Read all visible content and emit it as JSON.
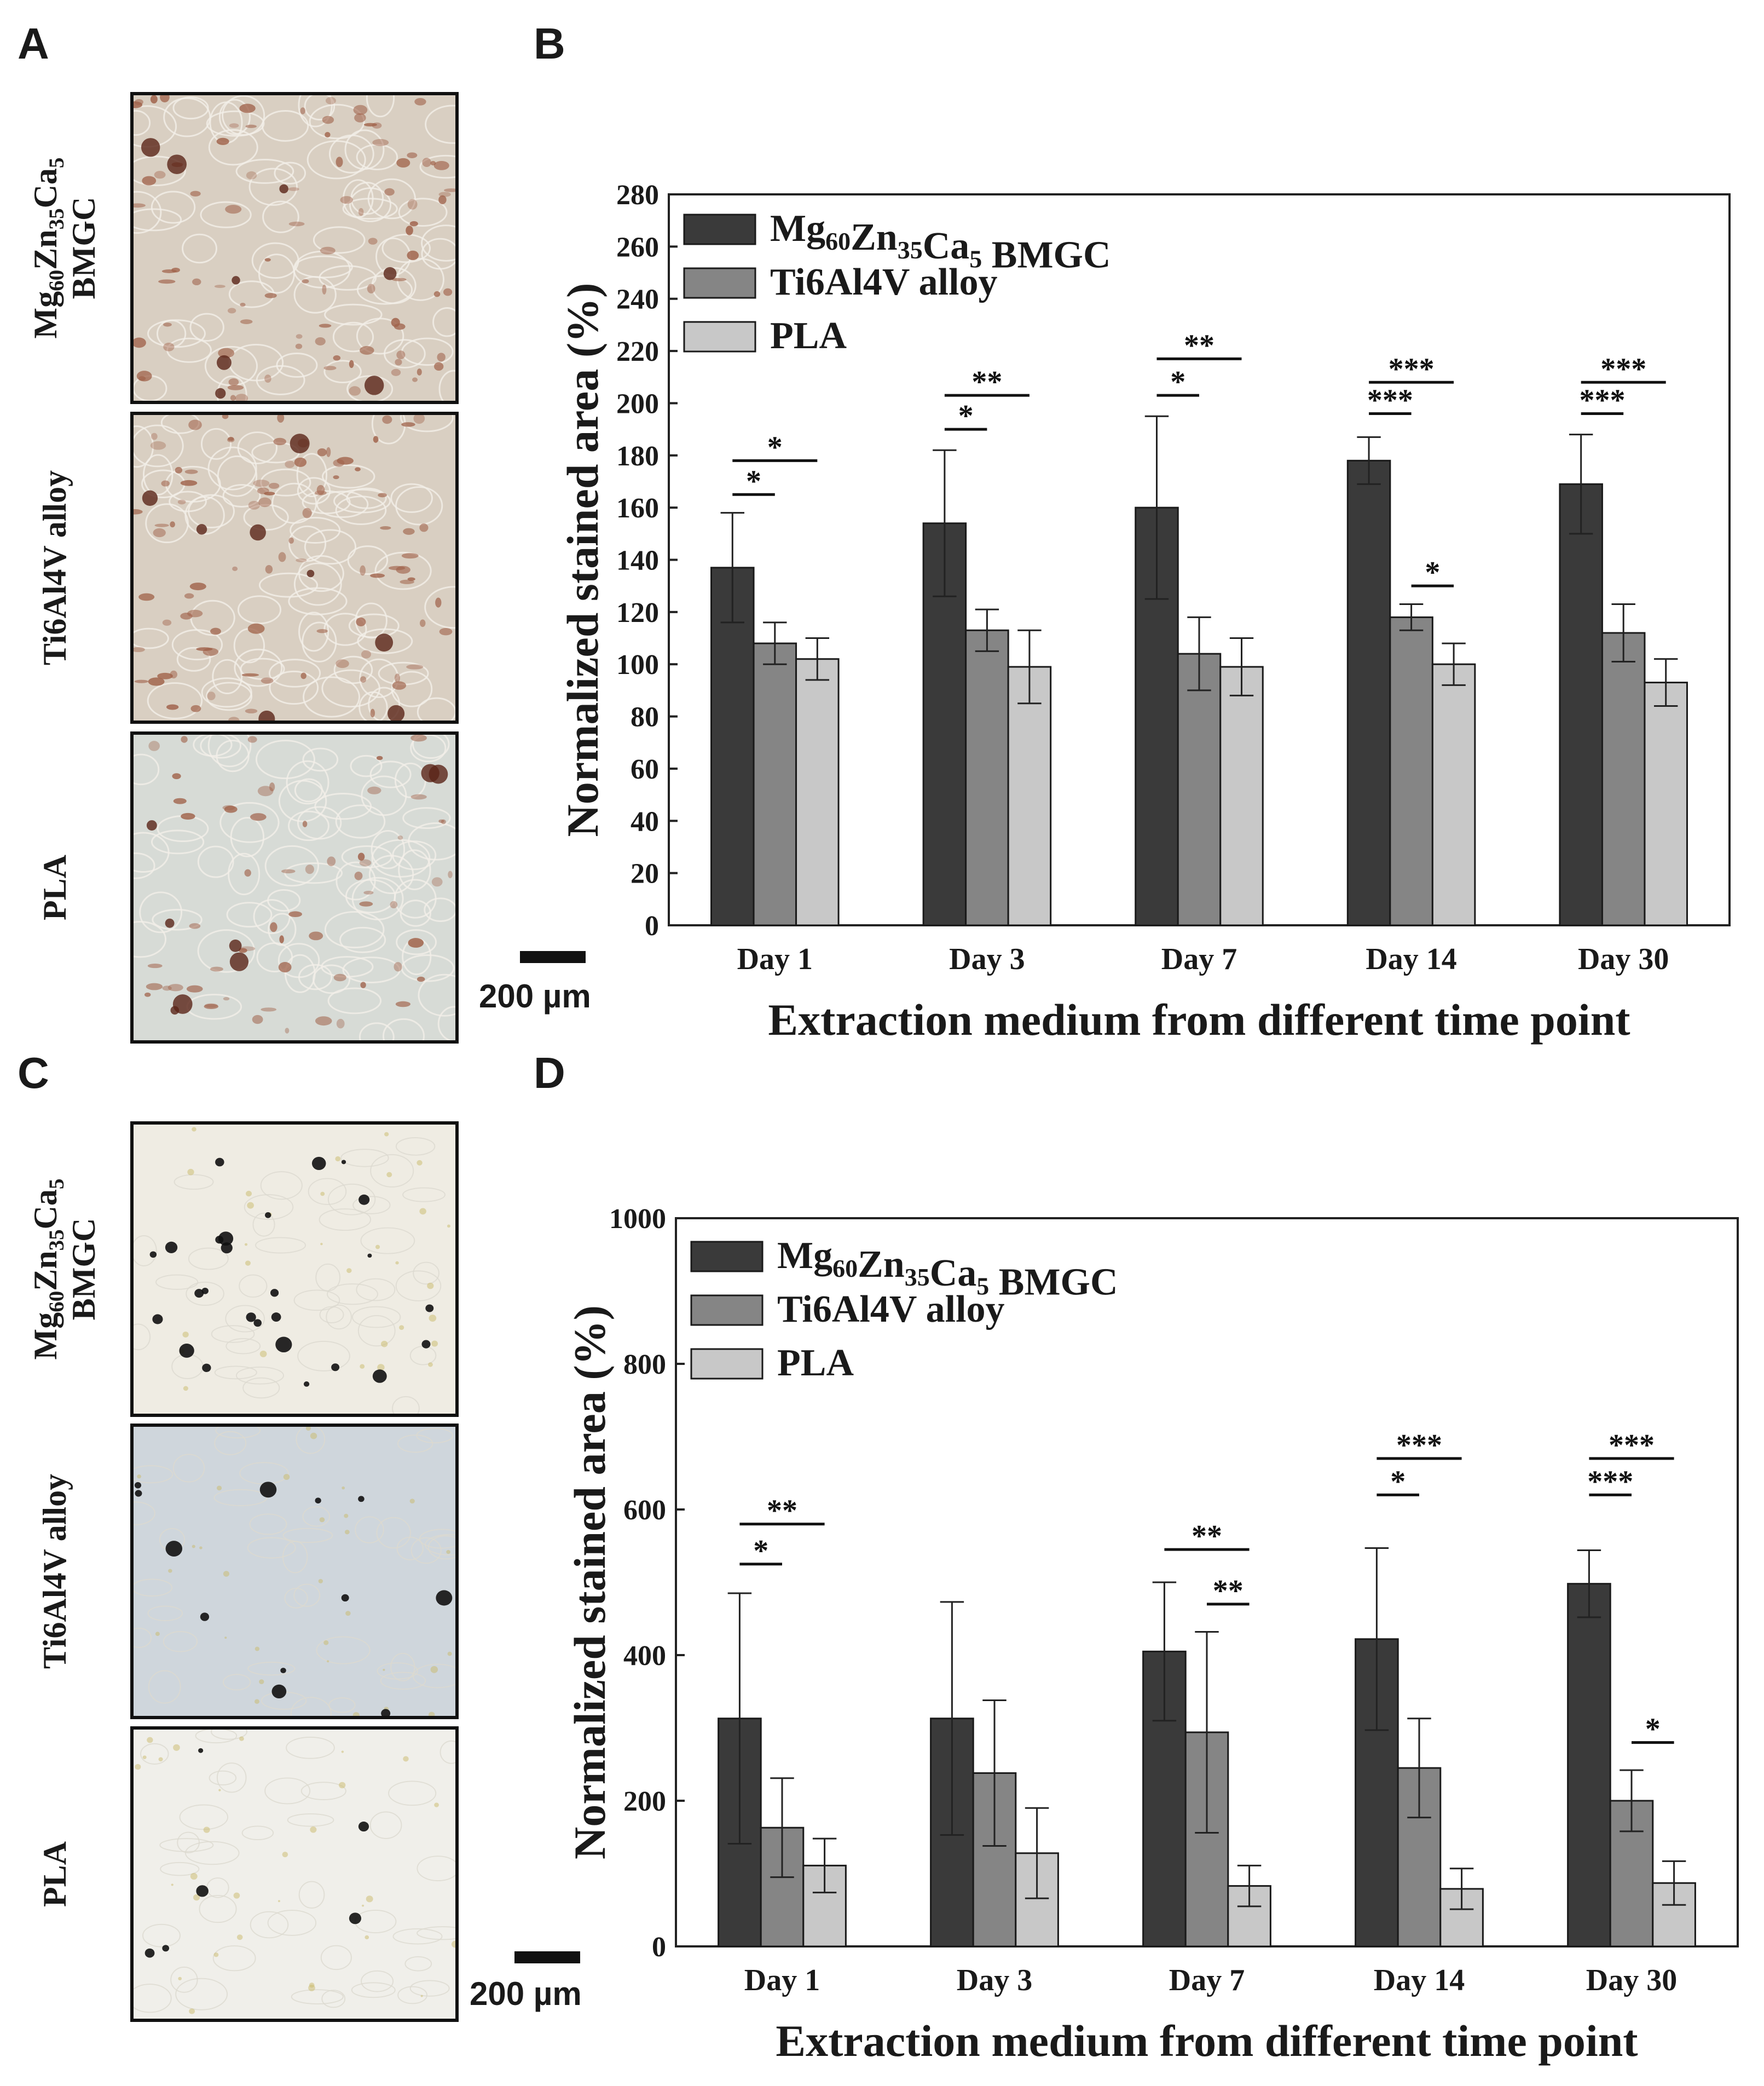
{
  "figure": {
    "panel_labels": {
      "a": "A",
      "b": "B",
      "c": "C",
      "d": "D"
    },
    "micrograph_rows": [
      {
        "label_line1": "Mg60Zn35Ca5",
        "label_line2": "BMGC"
      },
      {
        "label_line1": "Ti6Al4V alloy",
        "label_line2": ""
      },
      {
        "label_line1": "PLA",
        "label_line2": ""
      }
    ],
    "scale_bar_label": "200 µm",
    "stain_colors": {
      "alp_cells": "#a0624a",
      "alp_dark": "#5a2418",
      "mineral_nodule": "#111111"
    }
  },
  "chart_data": [
    {
      "type": "bar",
      "panel": "B",
      "title": "",
      "xlabel": "Extraction medium from different time point",
      "ylabel": "Normalized stained area (%)",
      "ylim": [
        0,
        280
      ],
      "yticks": [
        0,
        20,
        40,
        60,
        80,
        100,
        120,
        140,
        160,
        180,
        200,
        220,
        240,
        260,
        280
      ],
      "legend_position": "top-left",
      "categories": [
        "Day 1",
        "Day 3",
        "Day 7",
        "Day 14",
        "Day 30"
      ],
      "series": [
        {
          "name": "Mg60Zn35Ca5 BMGC",
          "color": "#3a3a3a",
          "values": [
            137,
            154,
            160,
            178,
            169
          ],
          "errors": [
            21,
            28,
            35,
            9,
            19
          ]
        },
        {
          "name": "Ti6Al4V alloy",
          "color": "#858585",
          "values": [
            108,
            113,
            104,
            118,
            112
          ],
          "errors": [
            8,
            8,
            14,
            5,
            11
          ]
        },
        {
          "name": "PLA",
          "color": "#c8c8c8",
          "values": [
            102,
            99,
            99,
            100,
            93
          ],
          "errors": [
            8,
            14,
            11,
            8,
            9
          ]
        }
      ],
      "significance": [
        {
          "category": 0,
          "from": 0,
          "to": 1,
          "y": 165,
          "label": "*"
        },
        {
          "category": 0,
          "from": 0,
          "to": 2,
          "y": 178,
          "label": "*"
        },
        {
          "category": 1,
          "from": 0,
          "to": 1,
          "y": 190,
          "label": "*"
        },
        {
          "category": 1,
          "from": 0,
          "to": 2,
          "y": 203,
          "label": "**"
        },
        {
          "category": 2,
          "from": 0,
          "to": 1,
          "y": 203,
          "label": "*"
        },
        {
          "category": 2,
          "from": 0,
          "to": 2,
          "y": 217,
          "label": "**"
        },
        {
          "category": 3,
          "from": 0,
          "to": 1,
          "y": 196,
          "label": "***"
        },
        {
          "category": 3,
          "from": 0,
          "to": 2,
          "y": 208,
          "label": "***"
        },
        {
          "category": 3,
          "from": 1,
          "to": 2,
          "y": 130,
          "label": "*"
        },
        {
          "category": 4,
          "from": 0,
          "to": 1,
          "y": 196,
          "label": "***"
        },
        {
          "category": 4,
          "from": 0,
          "to": 2,
          "y": 208,
          "label": "***"
        }
      ]
    },
    {
      "type": "bar",
      "panel": "D",
      "title": "",
      "xlabel": "Extraction medium from different time point",
      "ylabel": "Normalized stained area (%)",
      "ylim": [
        0,
        1000
      ],
      "yticks": [
        0,
        200,
        400,
        600,
        800,
        1000
      ],
      "legend_position": "top-left",
      "categories": [
        "Day 1",
        "Day 3",
        "Day 7",
        "Day 14",
        "Day 30"
      ],
      "series": [
        {
          "name": "Mg60Zn35Ca5 BMGC",
          "color": "#3a3a3a",
          "values": [
            313,
            313,
            405,
            422,
            498
          ],
          "errors": [
            172,
            160,
            95,
            125,
            46
          ]
        },
        {
          "name": "Ti6Al4V alloy",
          "color": "#858585",
          "values": [
            163,
            238,
            294,
            245,
            200
          ],
          "errors": [
            68,
            100,
            138,
            68,
            42
          ]
        },
        {
          "name": "PLA",
          "color": "#c8c8c8",
          "values": [
            111,
            128,
            83,
            79,
            87
          ],
          "errors": [
            37,
            62,
            28,
            28,
            30
          ]
        }
      ],
      "significance": [
        {
          "category": 0,
          "from": 0,
          "to": 1,
          "y": 525,
          "label": "*"
        },
        {
          "category": 0,
          "from": 0,
          "to": 2,
          "y": 580,
          "label": "**"
        },
        {
          "category": 2,
          "from": 0,
          "to": 2,
          "y": 545,
          "label": "**"
        },
        {
          "category": 2,
          "from": 1,
          "to": 2,
          "y": 470,
          "label": "**"
        },
        {
          "category": 3,
          "from": 0,
          "to": 1,
          "y": 620,
          "label": "*"
        },
        {
          "category": 3,
          "from": 0,
          "to": 2,
          "y": 670,
          "label": "***"
        },
        {
          "category": 4,
          "from": 0,
          "to": 1,
          "y": 620,
          "label": "***"
        },
        {
          "category": 4,
          "from": 0,
          "to": 2,
          "y": 670,
          "label": "***"
        },
        {
          "category": 4,
          "from": 1,
          "to": 2,
          "y": 280,
          "label": "*"
        }
      ]
    }
  ]
}
